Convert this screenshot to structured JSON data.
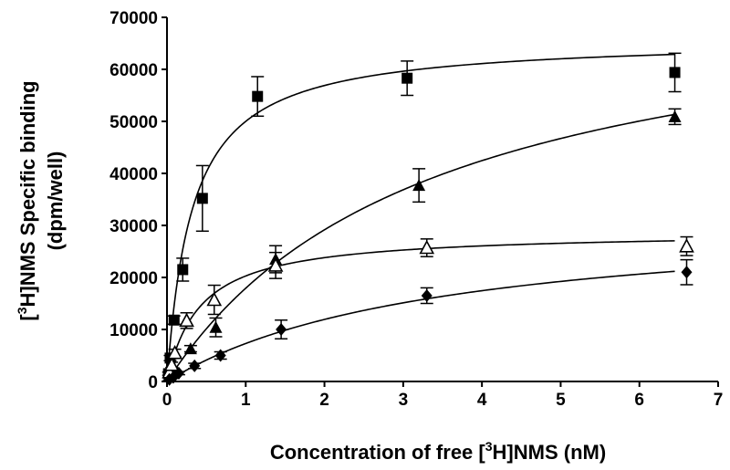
{
  "chart_data": {
    "type": "scatter",
    "xlabel_parts": [
      "Concentration of free [",
      "3",
      "H]NMS (nM)"
    ],
    "ylabel_parts": [
      "[",
      "3",
      "H]NMS Specific binding"
    ],
    "ylabel_line2": "(dpm/well)",
    "xlim": [
      0,
      7
    ],
    "ylim": [
      0,
      70000
    ],
    "xticks": [
      0,
      1,
      2,
      3,
      4,
      5,
      6,
      7
    ],
    "yticks": [
      0,
      10000,
      20000,
      30000,
      40000,
      50000,
      60000,
      70000
    ],
    "grid": false,
    "series": [
      {
        "marker": "square-filled",
        "fit": {
          "bmax": 66000,
          "kd": 0.32
        },
        "points": [
          {
            "x": 0.02,
            "y": 1500,
            "err": 300
          },
          {
            "x": 0.04,
            "y": 4500,
            "err": 500
          },
          {
            "x": 0.09,
            "y": 11800,
            "err": 800
          },
          {
            "x": 0.2,
            "y": 21500,
            "err": 2200
          },
          {
            "x": 0.45,
            "y": 35200,
            "err": 6300
          },
          {
            "x": 1.15,
            "y": 54800,
            "err": 3800
          },
          {
            "x": 3.05,
            "y": 58300,
            "err": 3300
          },
          {
            "x": 6.45,
            "y": 59400,
            "err": 3700
          }
        ]
      },
      {
        "marker": "triangle-filled",
        "fit": {
          "bmax": 78000,
          "kd": 3.35
        },
        "points": [
          {
            "x": 0.03,
            "y": 1000,
            "err": 200
          },
          {
            "x": 0.07,
            "y": 2200,
            "err": 300
          },
          {
            "x": 0.3,
            "y": 6300,
            "err": 600
          },
          {
            "x": 0.62,
            "y": 10400,
            "err": 1800
          },
          {
            "x": 1.38,
            "y": 23500,
            "err": 2600
          },
          {
            "x": 3.2,
            "y": 37700,
            "err": 3200
          },
          {
            "x": 6.45,
            "y": 50900,
            "err": 1500
          }
        ]
      },
      {
        "marker": "triangle-open",
        "fit": {
          "bmax": 28800,
          "kd": 0.42
        },
        "points": [
          {
            "x": 0.03,
            "y": 1800,
            "err": 300
          },
          {
            "x": 0.06,
            "y": 3200,
            "err": 500
          },
          {
            "x": 0.1,
            "y": 5500,
            "err": 700
          },
          {
            "x": 0.25,
            "y": 11700,
            "err": 1500
          },
          {
            "x": 0.6,
            "y": 15700,
            "err": 2800
          },
          {
            "x": 1.38,
            "y": 22300,
            "err": 2500
          },
          {
            "x": 3.3,
            "y": 25700,
            "err": 1700
          },
          {
            "x": 6.6,
            "y": 26000,
            "err": 1800
          }
        ]
      },
      {
        "marker": "diamond-filled",
        "fit": {
          "bmax": 32500,
          "kd": 3.45
        },
        "points": [
          {
            "x": 0.03,
            "y": 400,
            "err": 200
          },
          {
            "x": 0.08,
            "y": 800,
            "err": 200
          },
          {
            "x": 0.15,
            "y": 1600,
            "err": 300
          },
          {
            "x": 0.35,
            "y": 3000,
            "err": 500
          },
          {
            "x": 0.68,
            "y": 5000,
            "err": 700
          },
          {
            "x": 1.45,
            "y": 10000,
            "err": 1800
          },
          {
            "x": 3.3,
            "y": 16500,
            "err": 1500
          },
          {
            "x": 6.6,
            "y": 21000,
            "err": 2400
          }
        ]
      }
    ]
  }
}
